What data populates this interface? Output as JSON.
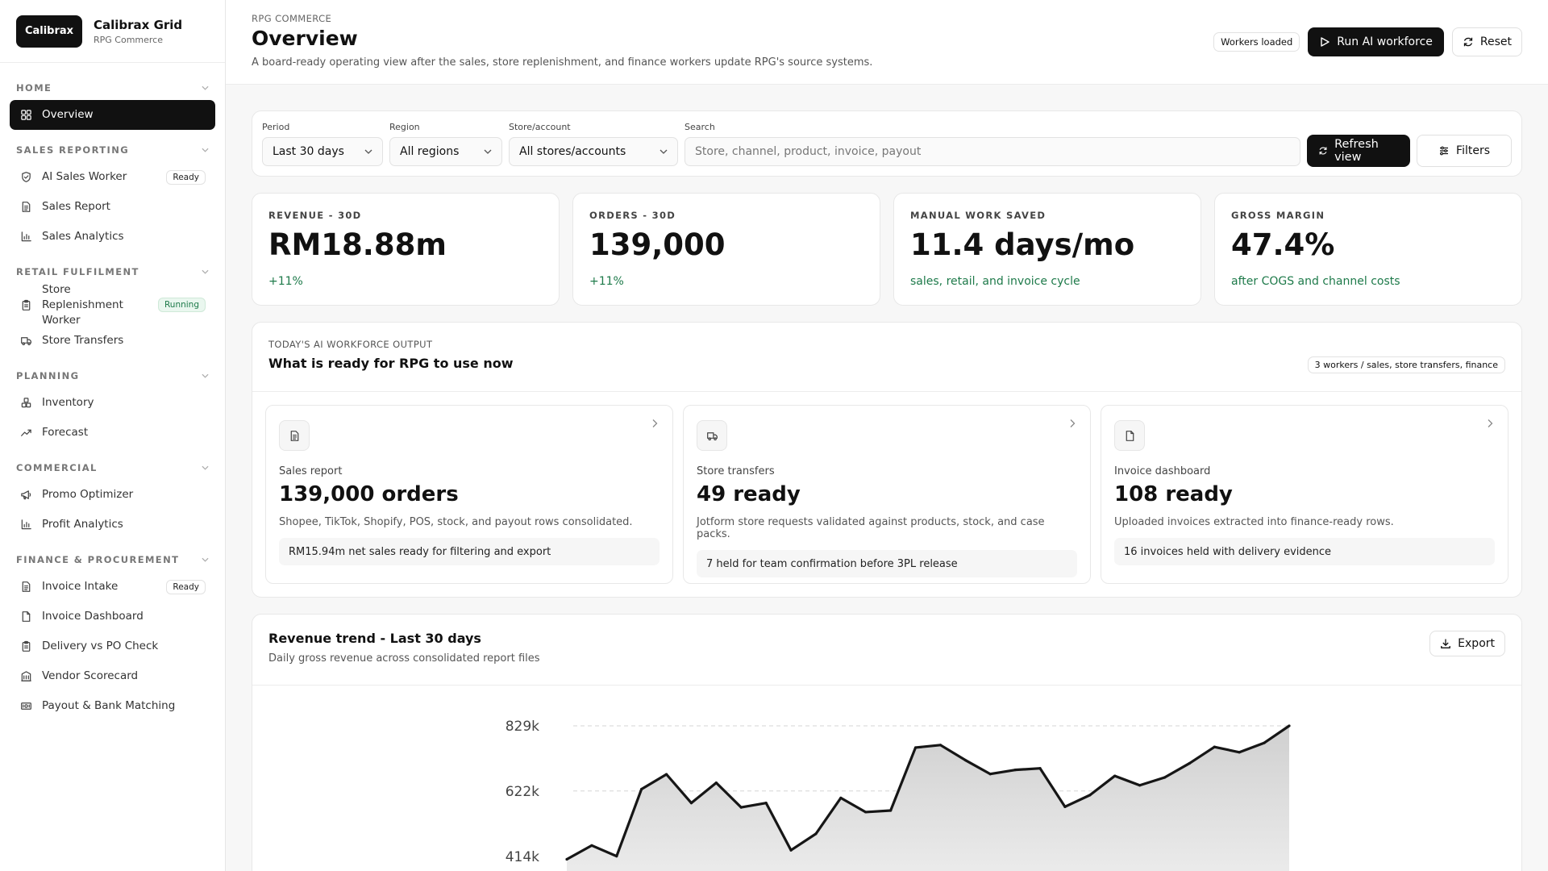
{
  "brand": {
    "logo_text": "Calibrax",
    "name": "Calibrax Grid",
    "sub": "RPG Commerce"
  },
  "sidebar": {
    "sections": [
      {
        "label": "HOME",
        "items": [
          {
            "label": "Overview",
            "icon": "grid-icon",
            "active": true
          }
        ]
      },
      {
        "label": "SALES REPORTING",
        "items": [
          {
            "label": "AI Sales Worker",
            "icon": "shield-icon",
            "badge": "Ready"
          },
          {
            "label": "Sales Report",
            "icon": "document-icon"
          },
          {
            "label": "Sales Analytics",
            "icon": "bar-chart-icon"
          }
        ]
      },
      {
        "label": "RETAIL FULFILMENT",
        "items": [
          {
            "label": "Store Replenishment Worker",
            "icon": "clipboard-icon",
            "badge": "Running"
          },
          {
            "label": "Store Transfers",
            "icon": "truck-icon"
          }
        ]
      },
      {
        "label": "PLANNING",
        "items": [
          {
            "label": "Inventory",
            "icon": "boxes-icon"
          },
          {
            "label": "Forecast",
            "icon": "trending-up-icon"
          }
        ]
      },
      {
        "label": "COMMERCIAL",
        "items": [
          {
            "label": "Promo Optimizer",
            "icon": "megaphone-icon"
          },
          {
            "label": "Profit Analytics",
            "icon": "bar-chart-icon"
          }
        ]
      },
      {
        "label": "FINANCE & PROCUREMENT",
        "items": [
          {
            "label": "Invoice Intake",
            "icon": "document-icon",
            "badge": "Ready"
          },
          {
            "label": "Invoice Dashboard",
            "icon": "file-icon"
          },
          {
            "label": "Delivery vs PO Check",
            "icon": "clipboard-icon"
          },
          {
            "label": "Vendor Scorecard",
            "icon": "building-icon"
          },
          {
            "label": "Payout & Bank Matching",
            "icon": "banknote-icon"
          }
        ]
      }
    ]
  },
  "header": {
    "eyebrow": "RPG COMMERCE",
    "title": "Overview",
    "subtitle": "A board-ready operating view after the sales, store replenishment, and finance workers update RPG's source systems.",
    "status_pill": "Workers loaded",
    "run_label": "Run AI workforce",
    "reset_label": "Reset"
  },
  "filters": {
    "period": {
      "label": "Period",
      "value": "Last 30 days"
    },
    "region": {
      "label": "Region",
      "value": "All regions"
    },
    "store": {
      "label": "Store/account",
      "value": "All stores/accounts"
    },
    "search": {
      "label": "Search",
      "placeholder": "Store, channel, product, invoice, payout"
    },
    "refresh_label": "Refresh view",
    "filters_label": "Filters"
  },
  "kpis": [
    {
      "label": "REVENUE - 30D",
      "value": "RM18.88m",
      "delta": "+11%"
    },
    {
      "label": "ORDERS - 30D",
      "value": "139,000",
      "delta": "+11%"
    },
    {
      "label": "MANUAL WORK SAVED",
      "value": "11.4 days/mo",
      "delta": "sales, retail, and invoice cycle"
    },
    {
      "label": "GROSS MARGIN",
      "value": "47.4%",
      "delta": "after COGS and channel costs"
    }
  ],
  "workforce": {
    "eyebrow": "TODAY'S AI WORKFORCE OUTPUT",
    "title": "What is ready for RPG to use now",
    "pill": "3 workers / sales, store transfers, finance",
    "cards": [
      {
        "icon": "document-icon",
        "kind": "Sales report",
        "big": "139,000 orders",
        "desc": "Shopee, TikTok, Shopify, POS, stock, and payout rows consolidated.",
        "note": "RM15.94m net sales ready for filtering and export"
      },
      {
        "icon": "truck-icon",
        "kind": "Store transfers",
        "big": "49 ready",
        "desc": "Jotform store requests validated against products, stock, and case packs.",
        "note": "7 held for team confirmation before 3PL release"
      },
      {
        "icon": "file-icon",
        "kind": "Invoice dashboard",
        "big": "108 ready",
        "desc": "Uploaded invoices extracted into finance-ready rows.",
        "note": "16 invoices held with delivery evidence"
      }
    ]
  },
  "chart": {
    "title": "Revenue trend - Last 30 days",
    "subtitle": "Daily gross revenue across consolidated report files",
    "export_label": "Export"
  },
  "chart_data": {
    "type": "area",
    "title": "Revenue trend - Last 30 days",
    "ytick_labels": [
      "829k",
      "622k",
      "414k"
    ],
    "yticks": [
      829000,
      622000,
      414000
    ],
    "ylim": [
      414000,
      829000
    ],
    "grid": true,
    "values": [
      405000,
      449000,
      415000,
      628000,
      675000,
      584000,
      648000,
      570000,
      584000,
      434000,
      486000,
      600000,
      555000,
      560000,
      760000,
      768000,
      720000,
      676000,
      689000,
      694000,
      572000,
      609000,
      670000,
      640000,
      665000,
      710000,
      762000,
      745000,
      775000,
      829000
    ]
  }
}
